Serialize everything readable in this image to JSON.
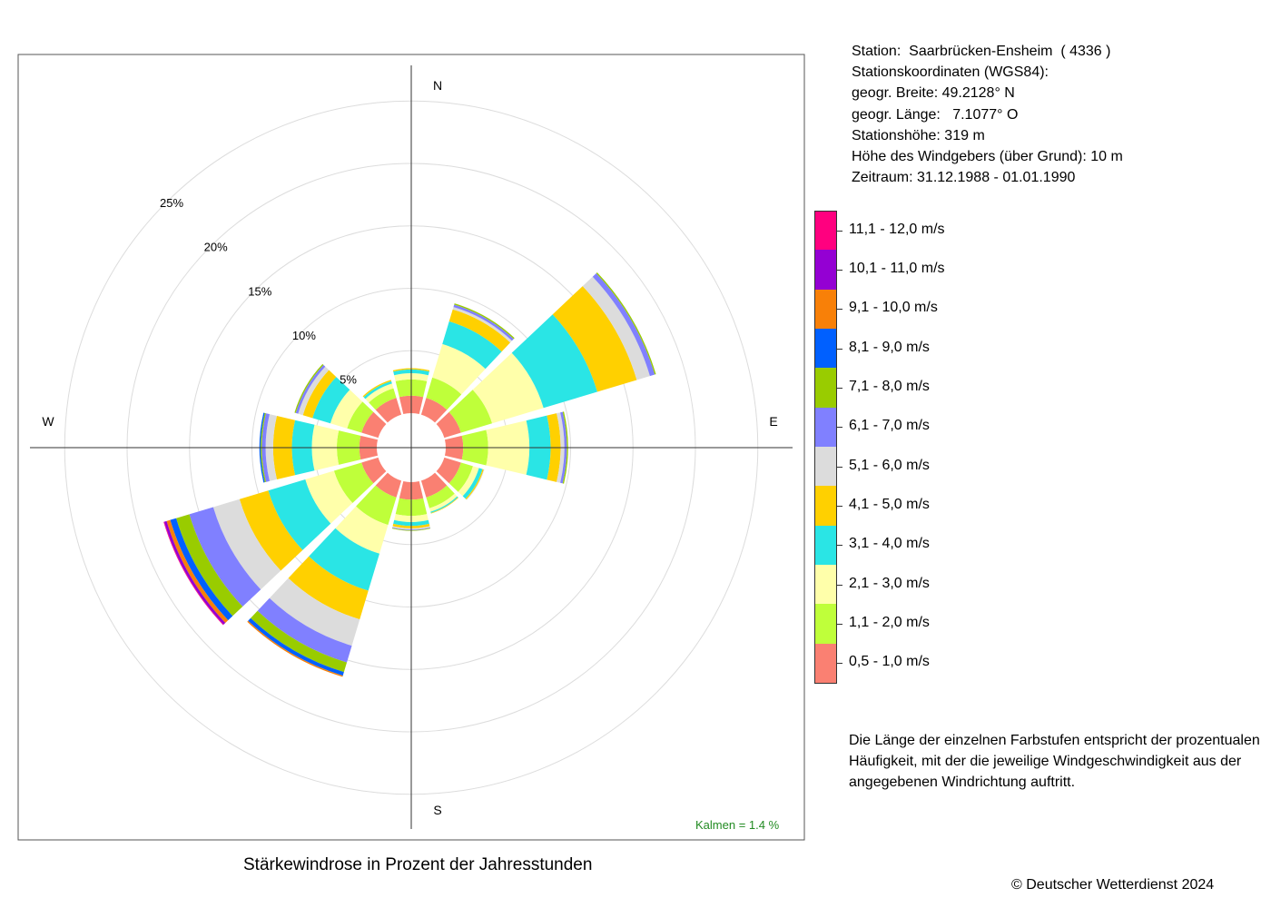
{
  "station_info": [
    "Station:  Saarbrücken-Ensheim  ( 4336 )",
    "Stationskoordinaten (WGS84):",
    "geogr. Breite: 49.2128° N",
    "geogr. Länge:   7.1077° O",
    "Stationshöhe: 319 m",
    "Höhe des Windgebers (über Grund): 10 m",
    "Zeitraum: 31.12.1988 - 01.01.1990"
  ],
  "caption": "Stärkewindrose in Prozent der Jahresstunden",
  "copyright": "© Deutscher Wetterdienst  2024",
  "note": "Die Länge der einzelnen Farbstufen entspricht der prozentualen Häufigkeit, mit der die jeweilige Windgeschwindigkeit aus der angegebenen Windrichtung auftritt.",
  "calm": "Kalmen  =  1.4 %",
  "chart_data": {
    "type": "polar_stacked_bar",
    "title": "Stärkewindrose in Prozent der Jahresstunden",
    "direction_labels": [
      "N",
      "E",
      "S",
      "W"
    ],
    "ring_labels": [
      "5%",
      "10%",
      "15%",
      "20%",
      "25%"
    ],
    "rings": [
      5,
      10,
      15,
      20,
      25
    ],
    "rmax": 25,
    "sectors_deg": [
      0,
      30,
      60,
      90,
      120,
      150,
      180,
      210,
      240,
      270,
      300,
      330
    ],
    "speed_classes": [
      {
        "label": "0,5 - 1,0 m/s",
        "color": "#FA8072"
      },
      {
        "label": "1,1 - 2,0 m/s",
        "color": "#BFFF3A"
      },
      {
        "label": "2,1 - 3,0 m/s",
        "color": "#FFFFAA"
      },
      {
        "label": "3,1 - 4,0 m/s",
        "color": "#2AE5E5"
      },
      {
        "label": "4,1 - 5,0 m/s",
        "color": "#FFD000"
      },
      {
        "label": "5,1 - 6,0 m/s",
        "color": "#DCDCDC"
      },
      {
        "label": "6,1 - 7,0 m/s",
        "color": "#8080FF"
      },
      {
        "label": "7,1 - 8,0 m/s",
        "color": "#99CC00"
      },
      {
        "label": "8,1 - 9,0 m/s",
        "color": "#0060FF"
      },
      {
        "label": "9,1 - 10,0 m/s",
        "color": "#F88008"
      },
      {
        "label": "10,1 - 11,0 m/s",
        "color": "#9400D3"
      },
      {
        "label": "11,1 - 12,0 m/s",
        "color": "#FF007F"
      }
    ],
    "values": [
      [
        1.4,
        1.3,
        0.5,
        0.3,
        0.1,
        0,
        0,
        0,
        0,
        0,
        0,
        0
      ],
      [
        1.4,
        1.7,
        2.8,
        1.9,
        1.0,
        0.2,
        0.2,
        0.1,
        0,
        0,
        0,
        0
      ],
      [
        1.4,
        2.6,
        4.3,
        4.5,
        3.3,
        1.1,
        0.4,
        0.1,
        0,
        0,
        0,
        0
      ],
      [
        1.4,
        2.0,
        3.3,
        1.7,
        0.8,
        0.3,
        0.2,
        0.1,
        0,
        0,
        0,
        0
      ],
      [
        1.4,
        1.0,
        0.5,
        0.3,
        0.1,
        0.05,
        0,
        0,
        0,
        0,
        0,
        0
      ],
      [
        1.4,
        0.9,
        0.3,
        0.1,
        0.05,
        0,
        0,
        0,
        0,
        0,
        0,
        0
      ],
      [
        1.4,
        1.3,
        0.5,
        0.3,
        0.2,
        0.1,
        0.05,
        0.05,
        0,
        0,
        0,
        0
      ],
      [
        1.4,
        2.3,
        2.4,
        3.1,
        2.4,
        2.2,
        1.4,
        0.8,
        0.3,
        0.1,
        0,
        0
      ],
      [
        1.4,
        2.3,
        2.4,
        3.1,
        2.4,
        2.2,
        2.0,
        1.1,
        0.5,
        0.3,
        0.2,
        0.05
      ],
      [
        1.4,
        1.8,
        2.0,
        1.6,
        1.5,
        0.6,
        0.3,
        0.1,
        0.1,
        0,
        0,
        0
      ],
      [
        1.4,
        1.2,
        1.4,
        1.5,
        0.8,
        0.4,
        0.2,
        0.1,
        0,
        0,
        0,
        0
      ],
      [
        1.4,
        0.8,
        0.4,
        0.2,
        0.1,
        0,
        0,
        0,
        0,
        0,
        0,
        0
      ]
    ],
    "grid": true
  }
}
